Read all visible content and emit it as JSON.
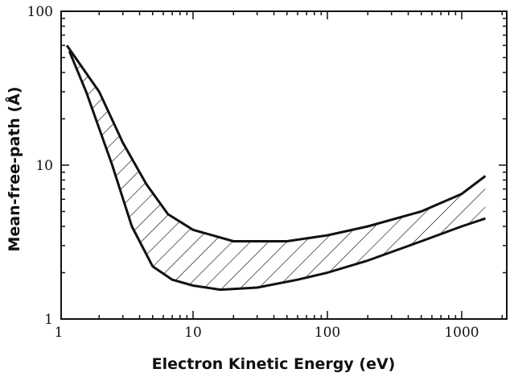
{
  "chart_data": {
    "type": "area",
    "title": "",
    "xlabel": "Electron Kinetic Energy (eV)",
    "ylabel": "Mean-free-path (Å)",
    "x_scale": "log",
    "y_scale": "log",
    "xlim": [
      1,
      2000
    ],
    "ylim": [
      1,
      100
    ],
    "x_ticks": [
      "1",
      "10",
      "100",
      "1000"
    ],
    "y_ticks": [
      "1",
      "10",
      "100"
    ],
    "grid": false,
    "legend": "none",
    "series": [
      {
        "points": [
          [
            1.15,
            60
          ],
          [
            2.0,
            30
          ],
          [
            3.0,
            14
          ],
          [
            4.5,
            7.5
          ],
          [
            6.5,
            4.8
          ],
          [
            10,
            3.8
          ],
          [
            20,
            3.2
          ],
          [
            50,
            3.2
          ],
          [
            100,
            3.5
          ],
          [
            200,
            4.0
          ],
          [
            500,
            5.0
          ],
          [
            1000,
            6.5
          ],
          [
            1500,
            8.5
          ]
        ]
      },
      {
        "points": [
          [
            1.2,
            55
          ],
          [
            1.6,
            30
          ],
          [
            2.5,
            10
          ],
          [
            3.5,
            4.0
          ],
          [
            5.0,
            2.2
          ],
          [
            7.0,
            1.8
          ],
          [
            10,
            1.65
          ],
          [
            16,
            1.55
          ],
          [
            30,
            1.6
          ],
          [
            60,
            1.8
          ],
          [
            100,
            2.0
          ],
          [
            200,
            2.4
          ],
          [
            500,
            3.2
          ],
          [
            1000,
            4.0
          ],
          [
            1500,
            4.5
          ]
        ]
      }
    ],
    "colors": {
      "ink": "#111111",
      "background": "#ffffff"
    }
  }
}
